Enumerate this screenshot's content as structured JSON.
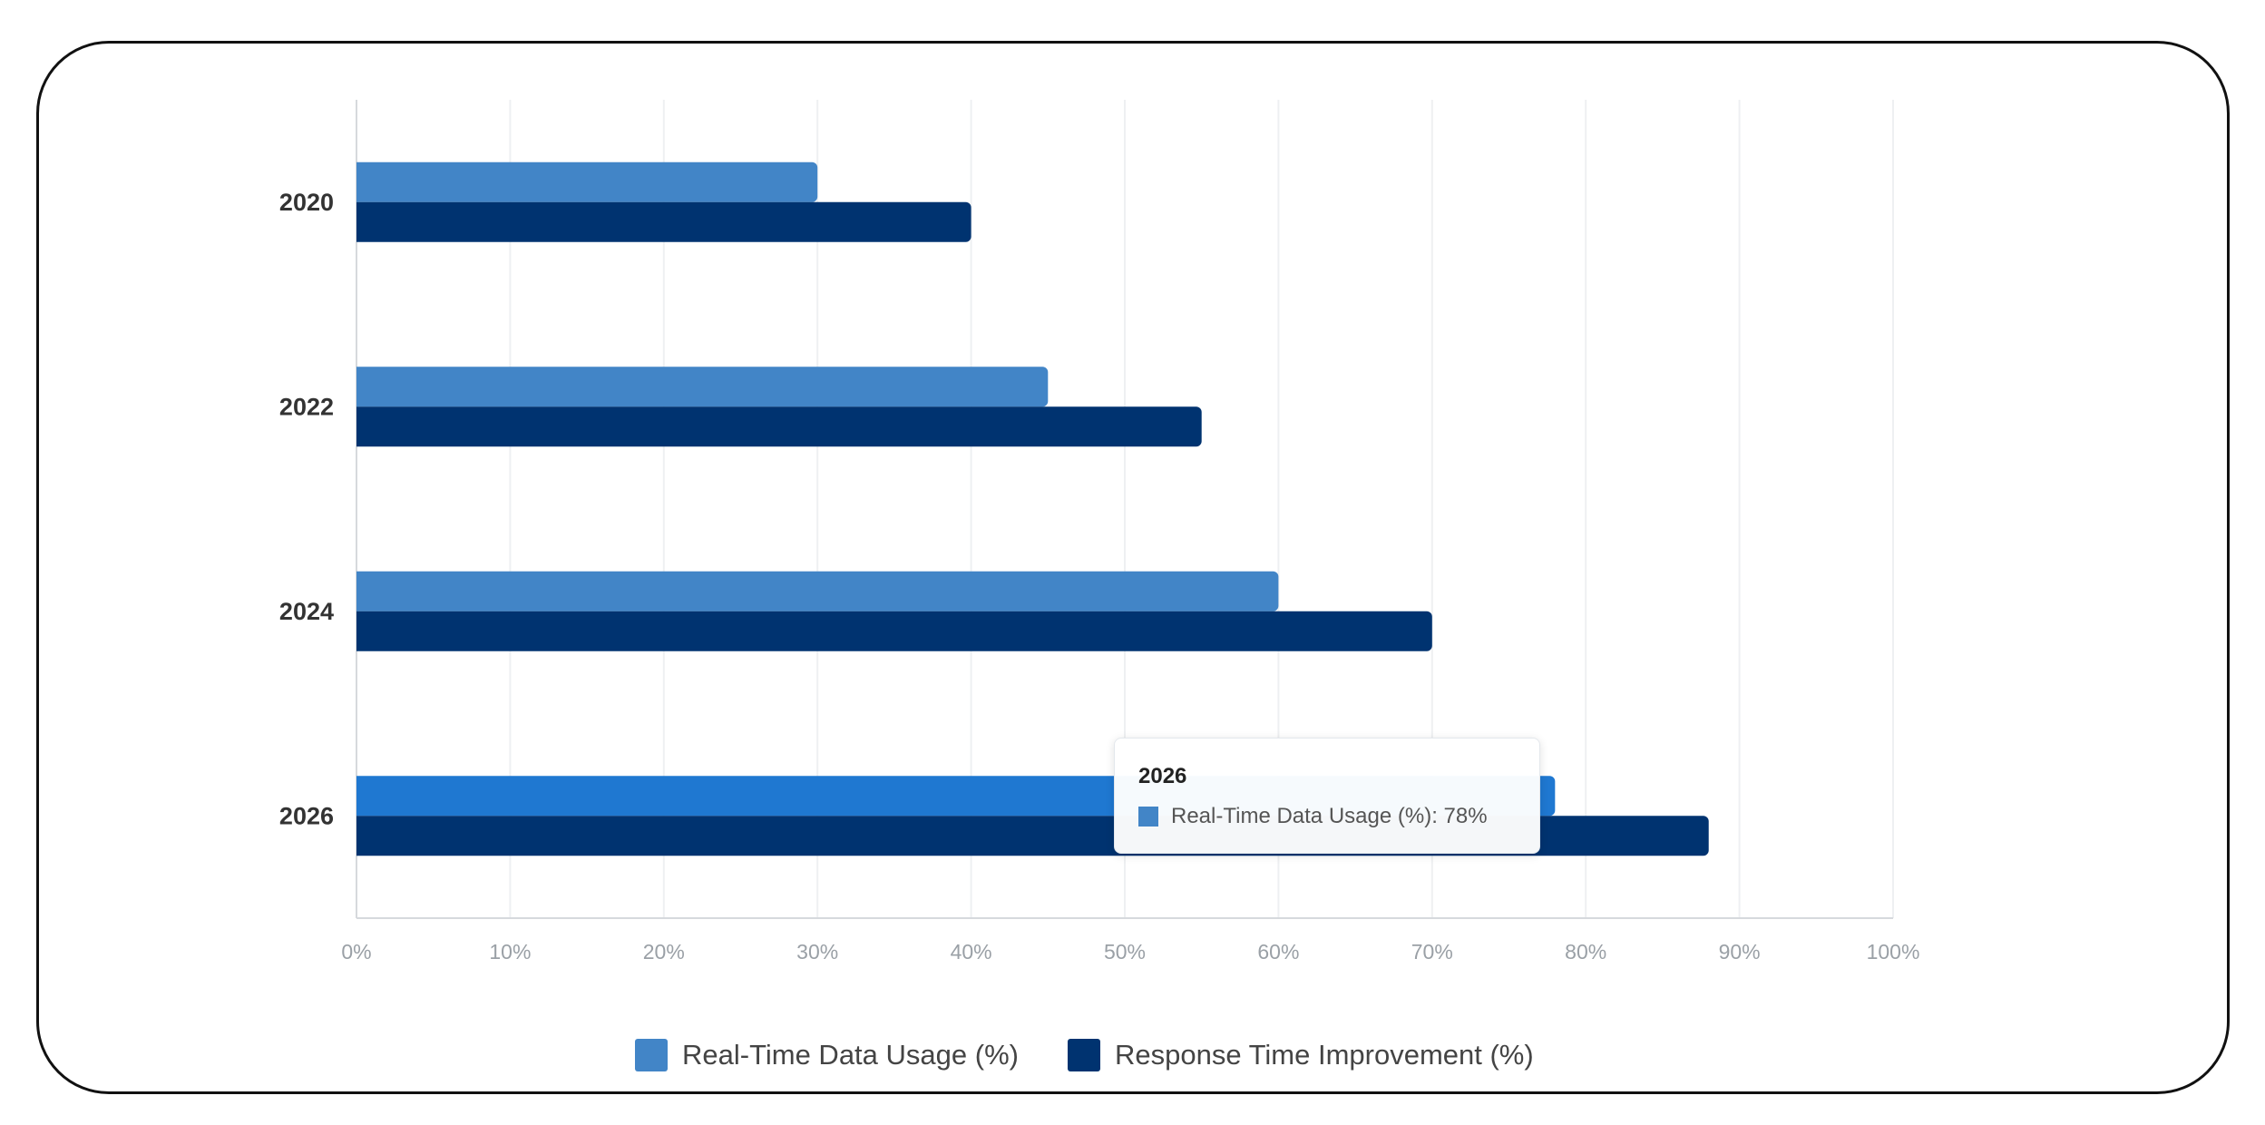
{
  "chart_data": {
    "type": "bar",
    "orientation": "horizontal",
    "categories": [
      "2020",
      "2022",
      "2024",
      "2026"
    ],
    "series": [
      {
        "name": "Real-Time Data Usage (%)",
        "values": [
          30,
          45,
          60,
          78
        ],
        "color": "#4285c7"
      },
      {
        "name": "Response Time Improvement (%)",
        "values": [
          40,
          55,
          70,
          88
        ],
        "color": "#003370"
      }
    ],
    "xlim": [
      0,
      100
    ],
    "x_ticks": [
      "0%",
      "10%",
      "20%",
      "30%",
      "40%",
      "50%",
      "60%",
      "70%",
      "80%",
      "90%",
      "100%"
    ],
    "grid": true,
    "legend_position": "bottom",
    "highlight_color": "#1f78d1",
    "highlighted": {
      "category": "2026",
      "series": 0
    }
  },
  "legend": {
    "items": [
      {
        "label": "Real-Time Data Usage (%)",
        "color": "#4285c7"
      },
      {
        "label": "Response Time Improvement (%)",
        "color": "#003370"
      }
    ]
  },
  "tooltip": {
    "title": "2026",
    "text": "Real-Time Data Usage (%): 78%",
    "color": "#4285c7"
  }
}
